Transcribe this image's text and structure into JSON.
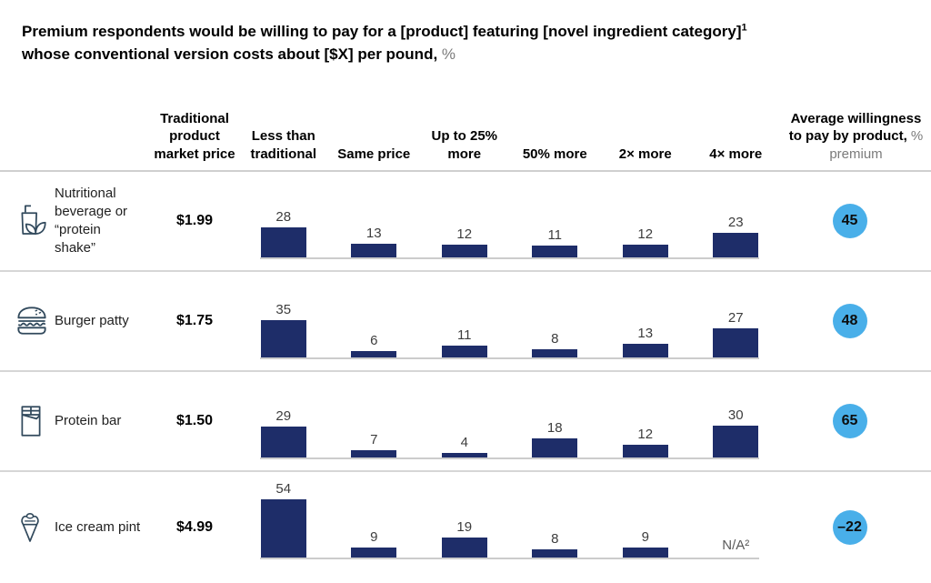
{
  "title": {
    "line1": "Premium respondents would be willing to pay for a [product] featuring [novel ingredient category]",
    "line1_superscript": "1",
    "line2": "whose conventional version costs about [$X] per pound,",
    "line2_suffix": " %"
  },
  "colors": {
    "bar": "#1e2d69",
    "badge": "#49afe9",
    "icon_stroke": "#31495c",
    "separator": "#d6d6d6",
    "gray_text": "#7b7b7b"
  },
  "table": {
    "columns": [
      {
        "label": "Traditional product market price"
      },
      {
        "label": "Less than traditional"
      },
      {
        "label": "Same price"
      },
      {
        "label": "Up to 25% more"
      },
      {
        "label": "50% more"
      },
      {
        "label": "2× more"
      },
      {
        "label": "4× more"
      },
      {
        "label": "Average willingness to pay by product,",
        "sublabel": " % premium"
      }
    ],
    "rows": [
      {
        "icon": "beverage-icon",
        "product": "Nutritional beverage or “protein shake”",
        "price": "$1.99",
        "values": [
          28,
          13,
          12,
          11,
          12,
          23
        ],
        "average": "45"
      },
      {
        "icon": "burger-icon",
        "product": "Burger patty",
        "price": "$1.75",
        "values": [
          35,
          6,
          11,
          8,
          13,
          27
        ],
        "average": "48"
      },
      {
        "icon": "protein-bar-icon",
        "product": "Protein bar",
        "price": "$1.50",
        "values": [
          29,
          7,
          4,
          18,
          12,
          30
        ],
        "average": "65"
      },
      {
        "icon": "ice-cream-icon",
        "product": "Ice cream pint",
        "price": "$4.99",
        "values": [
          54,
          9,
          19,
          8,
          9,
          "N/A²"
        ],
        "average": "–22"
      }
    ]
  },
  "chart_data": {
    "type": "bar",
    "title": "Premium respondents would be willing to pay for a [product] featuring [novel ingredient category]¹ whose conventional version costs about [$X] per pound, %",
    "categories": [
      "Less than traditional",
      "Same price",
      "Up to 25% more",
      "50% more",
      "2× more",
      "4× more"
    ],
    "series": [
      {
        "name": "Nutritional beverage or “protein shake”",
        "market_price": "$1.99",
        "values": [
          28,
          13,
          12,
          11,
          12,
          23
        ],
        "average_willingness_to_pay_pct_premium": 45
      },
      {
        "name": "Burger patty",
        "market_price": "$1.75",
        "values": [
          35,
          6,
          11,
          8,
          13,
          27
        ],
        "average_willingness_to_pay_pct_premium": 48
      },
      {
        "name": "Protein bar",
        "market_price": "$1.50",
        "values": [
          29,
          7,
          4,
          18,
          12,
          30
        ],
        "average_willingness_to_pay_pct_premium": 65
      },
      {
        "name": "Ice cream pint",
        "market_price": "$4.99",
        "values": [
          54,
          9,
          19,
          8,
          9,
          null
        ],
        "average_willingness_to_pay_pct_premium": -22,
        "note": "4× more value shown as N/A²"
      }
    ],
    "value_labels": true,
    "grid": false,
    "legend": "none",
    "ylim": [
      0,
      60
    ],
    "unit": "%"
  }
}
